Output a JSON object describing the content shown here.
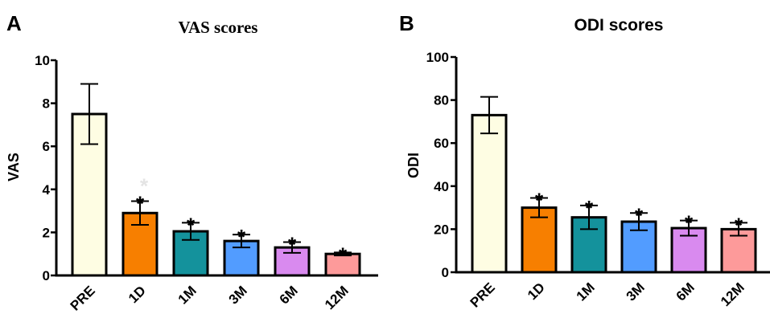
{
  "chart_data": [
    {
      "panel_letter": "A",
      "type": "bar",
      "title": "VAS scores",
      "ylabel": "VAS",
      "xlabel": "",
      "ylim": [
        0,
        10
      ],
      "yticks": [
        "0",
        "2",
        "4",
        "6",
        "8",
        "10"
      ],
      "categories": [
        "PRE",
        "1D",
        "1M",
        "3M",
        "6M",
        "12M"
      ],
      "values": [
        7.5,
        2.9,
        2.05,
        1.6,
        1.3,
        1.0
      ],
      "errors": [
        1.4,
        0.55,
        0.4,
        0.3,
        0.25,
        0.07
      ],
      "significance": [
        "",
        "*",
        "*",
        "*",
        "*",
        "*"
      ],
      "colors": [
        "#fefde3",
        "#f77f00",
        "#14929c",
        "#529cff",
        "#d98aef",
        "#fd9a9a"
      ],
      "grid": false,
      "legend": "none"
    },
    {
      "panel_letter": "B",
      "type": "bar",
      "title": "ODI scores",
      "ylabel": "ODI",
      "xlabel": "",
      "ylim": [
        0,
        100
      ],
      "yticks": [
        "0",
        "20",
        "40",
        "60",
        "80",
        "100"
      ],
      "categories": [
        "PRE",
        "1D",
        "1M",
        "3M",
        "6M",
        "12M"
      ],
      "values": [
        73,
        30,
        25.5,
        23.5,
        20.5,
        20
      ],
      "errors": [
        8.5,
        4.5,
        5.5,
        4,
        3.5,
        3
      ],
      "significance": [
        "",
        "*",
        "*",
        "*",
        "*",
        "*"
      ],
      "colors": [
        "#fefde3",
        "#f77f00",
        "#14929c",
        "#529cff",
        "#d98aef",
        "#fd9a9a"
      ],
      "grid": false,
      "legend": "none"
    }
  ]
}
